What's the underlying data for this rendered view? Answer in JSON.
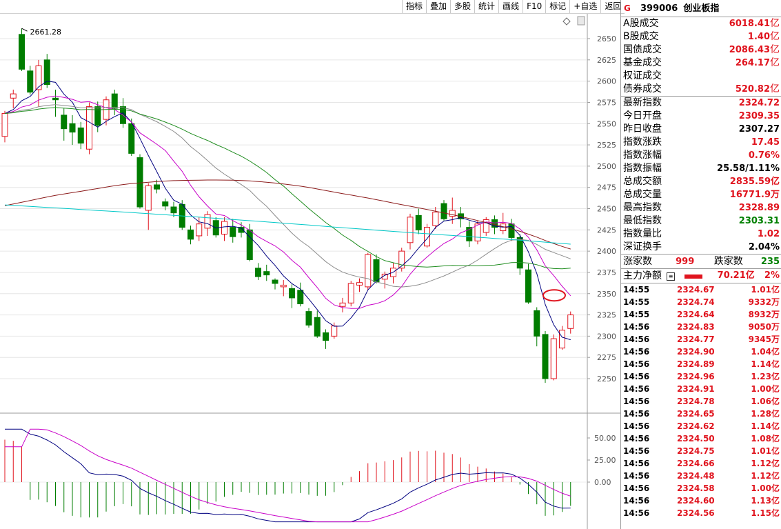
{
  "toolbar": {
    "buttons": [
      "指标",
      "叠加",
      "多股",
      "统计",
      "画线",
      "F10",
      "标记",
      "+自选",
      "返回"
    ]
  },
  "header": {
    "icon": "G",
    "code": "399006",
    "name": "创业板指"
  },
  "turnover": [
    {
      "label": "A股成交",
      "value": "6018.41",
      "unit": "亿"
    },
    {
      "label": "B股成交",
      "value": "1.40",
      "unit": "亿"
    },
    {
      "label": "国债成交",
      "value": "2086.43",
      "unit": "亿"
    },
    {
      "label": "基金成交",
      "value": "264.17",
      "unit": "亿"
    },
    {
      "label": "权证成交",
      "value": "",
      "unit": ""
    },
    {
      "label": "债券成交",
      "value": "520.82",
      "unit": "亿"
    }
  ],
  "index_stats": [
    {
      "label": "最新指数",
      "value": "2324.72",
      "color": "red"
    },
    {
      "label": "今日开盘",
      "value": "2309.35",
      "color": "red"
    },
    {
      "label": "昨日收盘",
      "value": "2307.27",
      "color": "black"
    },
    {
      "label": "指数涨跌",
      "value": "17.45",
      "color": "red"
    },
    {
      "label": "指数涨幅",
      "value": "0.76%",
      "color": "red"
    },
    {
      "label": "指数振幅",
      "value": "25.58/1.11%",
      "color": "black"
    },
    {
      "label": "总成交额",
      "value": "2835.59亿",
      "color": "red"
    },
    {
      "label": "总成交量",
      "value": "16771.9万",
      "color": "red"
    },
    {
      "label": "最高指数",
      "value": "2328.89",
      "color": "red"
    },
    {
      "label": "最低指数",
      "value": "2303.31",
      "color": "green"
    },
    {
      "label": "指数量比",
      "value": "1.02",
      "color": "red"
    },
    {
      "label": "深证换手",
      "value": "2.04%",
      "color": "black"
    }
  ],
  "breadth": {
    "up_label": "涨家数",
    "up_value": "999",
    "down_label": "跌家数",
    "down_value": "235"
  },
  "main_flow": {
    "label": "主力净额",
    "value": "70.21亿",
    "pct": "2%"
  },
  "ticks": [
    {
      "time": "14:55",
      "price": "2324.67",
      "vol": "1.01亿"
    },
    {
      "time": "14:55",
      "price": "2324.74",
      "vol": "9332万"
    },
    {
      "time": "14:55",
      "price": "2324.64",
      "vol": "8932万"
    },
    {
      "time": "14:56",
      "price": "2324.83",
      "vol": "9050万"
    },
    {
      "time": "14:56",
      "price": "2324.77",
      "vol": "9345万"
    },
    {
      "time": "14:56",
      "price": "2324.90",
      "vol": "1.04亿"
    },
    {
      "time": "14:56",
      "price": "2324.89",
      "vol": "1.14亿"
    },
    {
      "time": "14:56",
      "price": "2324.96",
      "vol": "1.23亿"
    },
    {
      "time": "14:56",
      "price": "2324.91",
      "vol": "1.00亿"
    },
    {
      "time": "14:56",
      "price": "2324.78",
      "vol": "1.06亿"
    },
    {
      "time": "14:56",
      "price": "2324.65",
      "vol": "1.28亿"
    },
    {
      "time": "14:56",
      "price": "2324.62",
      "vol": "1.14亿"
    },
    {
      "time": "14:56",
      "price": "2324.50",
      "vol": "1.08亿"
    },
    {
      "time": "14:56",
      "price": "2324.75",
      "vol": "1.01亿"
    },
    {
      "time": "14:56",
      "price": "2324.66",
      "vol": "1.12亿"
    },
    {
      "time": "14:56",
      "price": "2324.48",
      "vol": "1.12亿"
    },
    {
      "time": "14:56",
      "price": "2324.58",
      "vol": "1.00亿"
    },
    {
      "time": "14:56",
      "price": "2324.60",
      "vol": "1.13亿"
    },
    {
      "time": "14:56",
      "price": "2324.56",
      "vol": "1.15亿"
    }
  ],
  "chart_data": {
    "type": "candlestick",
    "high_label": "2661.28",
    "price_axis_ticks": [
      2650,
      2625,
      2600,
      2575,
      2550,
      2525,
      2500,
      2475,
      2450,
      2425,
      2400,
      2375,
      2350,
      2325,
      2300,
      2275,
      2250
    ],
    "price_range": [
      2230,
      2675
    ],
    "candles": [
      {
        "o": 2535,
        "h": 2565,
        "l": 2528,
        "c": 2562
      },
      {
        "o": 2580,
        "h": 2590,
        "l": 2568,
        "c": 2585
      },
      {
        "o": 2655,
        "h": 2662,
        "l": 2612,
        "c": 2614
      },
      {
        "o": 2612,
        "h": 2618,
        "l": 2584,
        "c": 2587
      },
      {
        "o": 2590,
        "h": 2625,
        "l": 2570,
        "c": 2618
      },
      {
        "o": 2625,
        "h": 2632,
        "l": 2592,
        "c": 2596
      },
      {
        "o": 2580,
        "h": 2590,
        "l": 2558,
        "c": 2578
      },
      {
        "o": 2560,
        "h": 2568,
        "l": 2530,
        "c": 2544
      },
      {
        "o": 2550,
        "h": 2560,
        "l": 2525,
        "c": 2540
      },
      {
        "o": 2545,
        "h": 2552,
        "l": 2520,
        "c": 2527
      },
      {
        "o": 2520,
        "h": 2575,
        "l": 2514,
        "c": 2570
      },
      {
        "o": 2570,
        "h": 2576,
        "l": 2540,
        "c": 2548
      },
      {
        "o": 2555,
        "h": 2582,
        "l": 2548,
        "c": 2578
      },
      {
        "o": 2585,
        "h": 2590,
        "l": 2560,
        "c": 2568
      },
      {
        "o": 2570,
        "h": 2580,
        "l": 2545,
        "c": 2550
      },
      {
        "o": 2550,
        "h": 2556,
        "l": 2512,
        "c": 2515
      },
      {
        "o": 2510,
        "h": 2514,
        "l": 2450,
        "c": 2452
      },
      {
        "o": 2448,
        "h": 2480,
        "l": 2425,
        "c": 2477
      },
      {
        "o": 2478,
        "h": 2484,
        "l": 2468,
        "c": 2473
      },
      {
        "o": 2458,
        "h": 2462,
        "l": 2448,
        "c": 2453
      },
      {
        "o": 2452,
        "h": 2458,
        "l": 2440,
        "c": 2445
      },
      {
        "o": 2455,
        "h": 2460,
        "l": 2425,
        "c": 2428
      },
      {
        "o": 2425,
        "h": 2430,
        "l": 2408,
        "c": 2414
      },
      {
        "o": 2418,
        "h": 2440,
        "l": 2412,
        "c": 2432
      },
      {
        "o": 2427,
        "h": 2447,
        "l": 2418,
        "c": 2443
      },
      {
        "o": 2436,
        "h": 2440,
        "l": 2416,
        "c": 2419
      },
      {
        "o": 2420,
        "h": 2440,
        "l": 2412,
        "c": 2435
      },
      {
        "o": 2428,
        "h": 2438,
        "l": 2410,
        "c": 2417
      },
      {
        "o": 2428,
        "h": 2434,
        "l": 2416,
        "c": 2422
      },
      {
        "o": 2425,
        "h": 2432,
        "l": 2388,
        "c": 2390
      },
      {
        "o": 2380,
        "h": 2386,
        "l": 2366,
        "c": 2370
      },
      {
        "o": 2376,
        "h": 2384,
        "l": 2365,
        "c": 2372
      },
      {
        "o": 2366,
        "h": 2368,
        "l": 2355,
        "c": 2362
      },
      {
        "o": 2358,
        "h": 2366,
        "l": 2347,
        "c": 2360
      },
      {
        "o": 2356,
        "h": 2361,
        "l": 2333,
        "c": 2345
      },
      {
        "o": 2354,
        "h": 2363,
        "l": 2335,
        "c": 2338
      },
      {
        "o": 2329,
        "h": 2333,
        "l": 2310,
        "c": 2313
      },
      {
        "o": 2322,
        "h": 2330,
        "l": 2298,
        "c": 2300
      },
      {
        "o": 2304,
        "h": 2308,
        "l": 2285,
        "c": 2295
      },
      {
        "o": 2300,
        "h": 2316,
        "l": 2297,
        "c": 2312
      },
      {
        "o": 2335,
        "h": 2345,
        "l": 2328,
        "c": 2339
      },
      {
        "o": 2339,
        "h": 2365,
        "l": 2335,
        "c": 2362
      },
      {
        "o": 2360,
        "h": 2368,
        "l": 2352,
        "c": 2363
      },
      {
        "o": 2358,
        "h": 2398,
        "l": 2354,
        "c": 2396
      },
      {
        "o": 2390,
        "h": 2396,
        "l": 2362,
        "c": 2364
      },
      {
        "o": 2367,
        "h": 2376,
        "l": 2356,
        "c": 2373
      },
      {
        "o": 2370,
        "h": 2386,
        "l": 2362,
        "c": 2380
      },
      {
        "o": 2380,
        "h": 2404,
        "l": 2376,
        "c": 2400
      },
      {
        "o": 2410,
        "h": 2444,
        "l": 2402,
        "c": 2440
      },
      {
        "o": 2442,
        "h": 2450,
        "l": 2420,
        "c": 2425
      },
      {
        "o": 2406,
        "h": 2432,
        "l": 2404,
        "c": 2428
      },
      {
        "o": 2430,
        "h": 2452,
        "l": 2426,
        "c": 2446
      },
      {
        "o": 2456,
        "h": 2460,
        "l": 2436,
        "c": 2438
      },
      {
        "o": 2441,
        "h": 2463,
        "l": 2432,
        "c": 2448
      },
      {
        "o": 2444,
        "h": 2452,
        "l": 2428,
        "c": 2438
      },
      {
        "o": 2428,
        "h": 2435,
        "l": 2405,
        "c": 2412
      },
      {
        "o": 2412,
        "h": 2436,
        "l": 2408,
        "c": 2432
      },
      {
        "o": 2422,
        "h": 2440,
        "l": 2418,
        "c": 2437
      },
      {
        "o": 2437,
        "h": 2442,
        "l": 2420,
        "c": 2428
      },
      {
        "o": 2424,
        "h": 2445,
        "l": 2420,
        "c": 2432
      },
      {
        "o": 2432,
        "h": 2438,
        "l": 2412,
        "c": 2416
      },
      {
        "o": 2416,
        "h": 2420,
        "l": 2372,
        "c": 2380
      },
      {
        "o": 2378,
        "h": 2385,
        "l": 2338,
        "c": 2340
      },
      {
        "o": 2330,
        "h": 2334,
        "l": 2288,
        "c": 2300
      },
      {
        "o": 2302,
        "h": 2306,
        "l": 2245,
        "c": 2250
      },
      {
        "o": 2250,
        "h": 2302,
        "l": 2248,
        "c": 2297
      },
      {
        "o": 2286,
        "h": 2312,
        "l": 2284,
        "c": 2307
      },
      {
        "o": 2309,
        "h": 2329,
        "l": 2303,
        "c": 2325
      }
    ],
    "macd_axis_ticks": [
      "50.00",
      "25.00",
      "0.00"
    ],
    "macd_range": [
      -45,
      65
    ]
  }
}
